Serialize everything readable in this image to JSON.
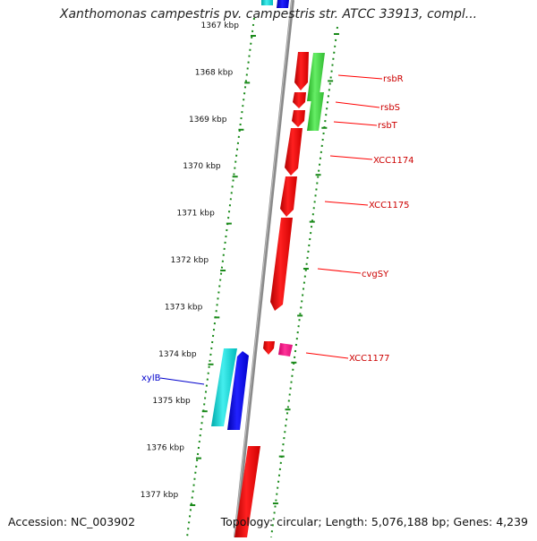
{
  "title": "Xanthomonas campestris pv. campestris str. ATCC 33913, compl...",
  "footer": {
    "accession": "Accession: NC_003902",
    "summary": "Topology: circular; Length: 5,076,188 bp; Genes: 4,239"
  },
  "colors": {
    "forward_gene": "#ff0000",
    "reverse_gene": "#33cc33",
    "pink_gene": "#ff1493",
    "blue_gene": "#0000ee",
    "cyan_gene": "#00cccc",
    "backbone": "#8a8a8a",
    "dotted_track": "#1a8a1a",
    "forward_label": "#cc0000",
    "blue_label": "#0000cc"
  },
  "ruler": {
    "unit": "kbp",
    "ticks": [
      "1367 kbp",
      "1368 kbp",
      "1369 kbp",
      "1370 kbp",
      "1371 kbp",
      "1372 kbp",
      "1373 kbp",
      "1374 kbp",
      "1375 kbp",
      "1376 kbp",
      "1377 kbp"
    ]
  },
  "gene_labels": [
    {
      "name": "rsbR",
      "color": "#cc0000"
    },
    {
      "name": "rsbS",
      "color": "#cc0000"
    },
    {
      "name": "rsbT",
      "color": "#cc0000"
    },
    {
      "name": "XCC1174",
      "color": "#cc0000"
    },
    {
      "name": "XCC1175",
      "color": "#cc0000"
    },
    {
      "name": "cvgSY",
      "color": "#cc0000"
    },
    {
      "name": "XCC1177",
      "color": "#cc0000"
    },
    {
      "name": "xylB",
      "color": "#0000cc"
    }
  ]
}
